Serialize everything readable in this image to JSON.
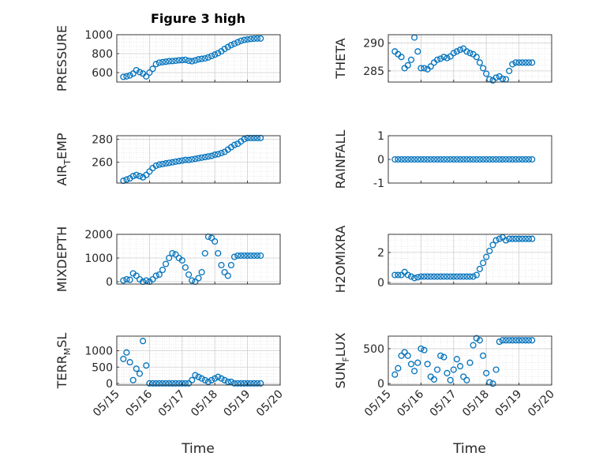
{
  "figure_title": "Figure 3 high",
  "x_axis_label": "Time",
  "marker_color": "#0072BD",
  "chart_data": [
    {
      "type": "scatter",
      "name": "PRESSURE",
      "ylabel": "PRESSURE",
      "ylim": [
        500,
        1000
      ],
      "yticks": [
        600,
        800,
        1000
      ],
      "xlim": [
        "05/15",
        "05/20"
      ],
      "xticks": [
        "05/15",
        "05/16",
        "05/17",
        "05/18",
        "05/19",
        "05/20"
      ],
      "grid": true,
      "x": [
        0.2,
        0.3,
        0.4,
        0.5,
        0.6,
        0.7,
        0.8,
        0.9,
        1.0,
        1.1,
        1.2,
        1.3,
        1.4,
        1.5,
        1.6,
        1.7,
        1.8,
        1.9,
        2.0,
        2.1,
        2.2,
        2.3,
        2.4,
        2.5,
        2.6,
        2.7,
        2.8,
        2.9,
        3.0,
        3.1,
        3.2,
        3.3,
        3.4,
        3.5,
        3.6,
        3.7,
        3.8,
        3.9,
        4.0,
        4.1,
        4.2,
        4.3,
        4.4
      ],
      "y": [
        555,
        560,
        570,
        590,
        625,
        605,
        590,
        560,
        600,
        640,
        690,
        705,
        710,
        715,
        720,
        722,
        725,
        730,
        732,
        735,
        725,
        720,
        728,
        740,
        745,
        750,
        760,
        775,
        790,
        805,
        825,
        850,
        870,
        890,
        905,
        920,
        935,
        945,
        950,
        955,
        958,
        960,
        960
      ]
    },
    {
      "type": "scatter",
      "name": "THETA",
      "ylabel": "THETA",
      "ylim": [
        283,
        291.5
      ],
      "yticks": [
        285,
        290
      ],
      "xlim": [
        "05/15",
        "05/20"
      ],
      "xticks": [
        "05/15",
        "05/16",
        "05/17",
        "05/18",
        "05/19",
        "05/20"
      ],
      "grid": true,
      "x": [
        0.2,
        0.3,
        0.4,
        0.5,
        0.6,
        0.7,
        0.8,
        0.9,
        1.0,
        1.1,
        1.2,
        1.3,
        1.4,
        1.5,
        1.6,
        1.7,
        1.8,
        1.9,
        2.0,
        2.1,
        2.2,
        2.3,
        2.4,
        2.5,
        2.6,
        2.7,
        2.8,
        2.9,
        3.0,
        3.1,
        3.2,
        3.3,
        3.4,
        3.5,
        3.6,
        3.7,
        3.8,
        3.9,
        4.0,
        4.1,
        4.2,
        4.3,
        4.4
      ],
      "y": [
        288.5,
        288,
        287.5,
        285.5,
        286,
        287,
        291,
        288.5,
        285.5,
        285.5,
        285.3,
        285.8,
        286.5,
        287,
        287.2,
        287.5,
        287.3,
        287.6,
        288.2,
        288.5,
        288.8,
        289,
        288.5,
        288.2,
        288,
        287.5,
        286.5,
        285.5,
        284.5,
        283.5,
        283.3,
        283.8,
        284,
        283.6,
        283.5,
        285,
        286.2,
        286.5,
        286.5,
        286.5,
        286.5,
        286.5,
        286.5
      ]
    },
    {
      "type": "scatter",
      "name": "AIR_TEMP",
      "ylabel": "AIR_TEMP",
      "ylim": [
        242,
        283
      ],
      "yticks": [
        260,
        280
      ],
      "xlim": [
        "05/15",
        "05/20"
      ],
      "xticks": [
        "05/15",
        "05/16",
        "05/17",
        "05/18",
        "05/19",
        "05/20"
      ],
      "grid": true,
      "x": [
        0.2,
        0.3,
        0.4,
        0.5,
        0.6,
        0.7,
        0.8,
        0.9,
        1.0,
        1.1,
        1.2,
        1.3,
        1.4,
        1.5,
        1.6,
        1.7,
        1.8,
        1.9,
        2.0,
        2.1,
        2.2,
        2.3,
        2.4,
        2.5,
        2.6,
        2.7,
        2.8,
        2.9,
        3.0,
        3.1,
        3.2,
        3.3,
        3.4,
        3.5,
        3.6,
        3.7,
        3.8,
        3.9,
        4.0,
        4.1,
        4.2,
        4.3,
        4.4
      ],
      "y": [
        244,
        245,
        246,
        248,
        249,
        248,
        247,
        249,
        252,
        255,
        257,
        258,
        258.5,
        259,
        259.5,
        260,
        260.5,
        261,
        261.5,
        262,
        262,
        262.5,
        263,
        263.5,
        264,
        264.5,
        265,
        265.5,
        266.5,
        267,
        268,
        269,
        271,
        273,
        275,
        276,
        278,
        280,
        281,
        281,
        281,
        281,
        281
      ]
    },
    {
      "type": "scatter",
      "name": "RAINFALL",
      "ylabel": "RAINFALL",
      "ylim": [
        -1,
        1
      ],
      "yticks": [
        -1,
        0,
        1
      ],
      "xlim": [
        "05/15",
        "05/20"
      ],
      "xticks": [
        "05/15",
        "05/16",
        "05/17",
        "05/18",
        "05/19",
        "05/20"
      ],
      "grid": false,
      "x": [
        0.2,
        0.3,
        0.4,
        0.5,
        0.6,
        0.7,
        0.8,
        0.9,
        1.0,
        1.1,
        1.2,
        1.3,
        1.4,
        1.5,
        1.6,
        1.7,
        1.8,
        1.9,
        2.0,
        2.1,
        2.2,
        2.3,
        2.4,
        2.5,
        2.6,
        2.7,
        2.8,
        2.9,
        3.0,
        3.1,
        3.2,
        3.3,
        3.4,
        3.5,
        3.6,
        3.7,
        3.8,
        3.9,
        4.0,
        4.1,
        4.2,
        4.3,
        4.4
      ],
      "y": [
        0,
        0,
        0,
        0,
        0,
        0,
        0,
        0,
        0,
        0,
        0,
        0,
        0,
        0,
        0,
        0,
        0,
        0,
        0,
        0,
        0,
        0,
        0,
        0,
        0,
        0,
        0,
        0,
        0,
        0,
        0,
        0,
        0,
        0,
        0,
        0,
        0,
        0,
        0,
        0,
        0,
        0,
        0
      ]
    },
    {
      "type": "scatter",
      "name": "MIXDEPTH",
      "ylabel": "MIXDEPTH",
      "ylim": [
        -100,
        2000
      ],
      "yticks": [
        0,
        1000,
        2000
      ],
      "xlim": [
        "05/15",
        "05/20"
      ],
      "xticks": [
        "05/15",
        "05/16",
        "05/17",
        "05/18",
        "05/19",
        "05/20"
      ],
      "grid": true,
      "x": [
        0.2,
        0.3,
        0.4,
        0.5,
        0.6,
        0.7,
        0.8,
        0.9,
        1.0,
        1.1,
        1.2,
        1.3,
        1.4,
        1.5,
        1.6,
        1.7,
        1.8,
        1.9,
        2.0,
        2.1,
        2.2,
        2.3,
        2.4,
        2.5,
        2.6,
        2.7,
        2.8,
        2.9,
        3.0,
        3.1,
        3.2,
        3.3,
        3.4,
        3.5,
        3.6,
        3.7,
        3.8,
        3.9,
        4.0,
        4.1,
        4.2,
        4.3,
        4.4
      ],
      "y": [
        50,
        100,
        80,
        350,
        250,
        100,
        0,
        50,
        0,
        100,
        250,
        300,
        500,
        750,
        1000,
        1200,
        1150,
        1000,
        900,
        600,
        300,
        50,
        0,
        150,
        400,
        1200,
        1900,
        1850,
        1700,
        1200,
        700,
        400,
        250,
        700,
        1050,
        1100,
        1100,
        1100,
        1100,
        1100,
        1100,
        1100,
        1100
      ]
    },
    {
      "type": "scatter",
      "name": "H2OMIXRA",
      "ylabel": "H2OMIXRA",
      "ylim": [
        -0.1,
        3.2
      ],
      "yticks": [
        0,
        2
      ],
      "xlim": [
        "05/15",
        "05/20"
      ],
      "xticks": [
        "05/15",
        "05/16",
        "05/17",
        "05/18",
        "05/19",
        "05/20"
      ],
      "grid": true,
      "x": [
        0.2,
        0.3,
        0.4,
        0.5,
        0.6,
        0.7,
        0.8,
        0.9,
        1.0,
        1.1,
        1.2,
        1.3,
        1.4,
        1.5,
        1.6,
        1.7,
        1.8,
        1.9,
        2.0,
        2.1,
        2.2,
        2.3,
        2.4,
        2.5,
        2.6,
        2.7,
        2.8,
        2.9,
        3.0,
        3.1,
        3.2,
        3.3,
        3.4,
        3.5,
        3.6,
        3.7,
        3.8,
        3.9,
        4.0,
        4.1,
        4.2,
        4.3,
        4.4
      ],
      "y": [
        0.5,
        0.5,
        0.5,
        0.7,
        0.5,
        0.4,
        0.3,
        0.35,
        0.4,
        0.4,
        0.4,
        0.4,
        0.4,
        0.4,
        0.4,
        0.4,
        0.4,
        0.4,
        0.4,
        0.4,
        0.4,
        0.4,
        0.4,
        0.4,
        0.4,
        0.5,
        0.9,
        1.3,
        1.7,
        2.1,
        2.5,
        2.8,
        2.9,
        3.0,
        2.8,
        2.9,
        2.9,
        2.9,
        2.9,
        2.9,
        2.9,
        2.9,
        2.9
      ]
    },
    {
      "type": "scatter",
      "name": "TERR_MSL",
      "ylabel": "TERR_MSL",
      "ylim": [
        -50,
        1450
      ],
      "yticks": [
        0,
        500,
        1000
      ],
      "xlim": [
        "05/15",
        "05/20"
      ],
      "xticks": [
        "05/15",
        "05/16",
        "05/17",
        "05/18",
        "05/19",
        "05/20"
      ],
      "grid": true,
      "x": [
        0.2,
        0.3,
        0.4,
        0.5,
        0.6,
        0.7,
        0.8,
        0.9,
        1.0,
        1.1,
        1.2,
        1.3,
        1.4,
        1.5,
        1.6,
        1.7,
        1.8,
        1.9,
        2.0,
        2.1,
        2.2,
        2.3,
        2.4,
        2.5,
        2.6,
        2.7,
        2.8,
        2.9,
        3.0,
        3.1,
        3.2,
        3.3,
        3.4,
        3.5,
        3.6,
        3.7,
        3.8,
        3.9,
        4.0,
        4.1,
        4.2,
        4.3,
        4.4
      ],
      "y": [
        750,
        950,
        650,
        100,
        450,
        300,
        1300,
        550,
        0,
        0,
        0,
        0,
        0,
        0,
        0,
        0,
        0,
        0,
        0,
        0,
        0,
        100,
        250,
        200,
        150,
        100,
        50,
        100,
        150,
        200,
        150,
        100,
        50,
        50,
        0,
        0,
        0,
        0,
        0,
        0,
        0,
        0,
        0
      ]
    },
    {
      "type": "scatter",
      "name": "SUN_FLUX",
      "ylabel": "SUN_FLUX",
      "ylim": [
        -20,
        680
      ],
      "yticks": [
        0,
        500
      ],
      "xlim": [
        "05/15",
        "05/20"
      ],
      "xticks": [
        "05/15",
        "05/16",
        "05/17",
        "05/18",
        "05/19",
        "05/20"
      ],
      "grid": true,
      "x": [
        0.2,
        0.3,
        0.4,
        0.5,
        0.6,
        0.7,
        0.8,
        0.9,
        1.0,
        1.1,
        1.2,
        1.3,
        1.4,
        1.5,
        1.6,
        1.7,
        1.8,
        1.9,
        2.0,
        2.1,
        2.2,
        2.3,
        2.4,
        2.5,
        2.6,
        2.7,
        2.8,
        2.9,
        3.0,
        3.1,
        3.2,
        3.3,
        3.4,
        3.5,
        3.6,
        3.7,
        3.8,
        3.9,
        4.0,
        4.1,
        4.2,
        4.3,
        4.4
      ],
      "y": [
        130,
        220,
        400,
        450,
        400,
        280,
        180,
        300,
        500,
        480,
        280,
        100,
        60,
        200,
        400,
        380,
        150,
        50,
        200,
        350,
        250,
        100,
        50,
        300,
        550,
        650,
        620,
        400,
        150,
        20,
        0,
        200,
        600,
        620,
        620,
        620,
        620,
        620,
        620,
        620,
        620,
        620,
        620
      ]
    }
  ]
}
